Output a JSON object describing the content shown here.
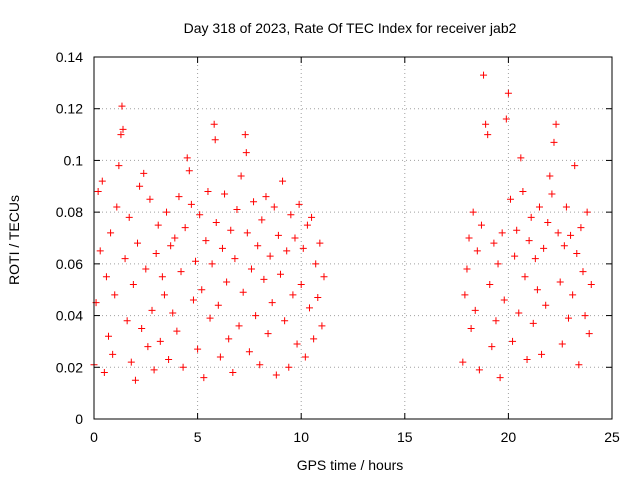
{
  "chart_data": {
    "type": "scatter",
    "title": "Day 318 of 2023, Rate Of TEC Index for receiver jab2",
    "xlabel": "GPS time / hours",
    "ylabel": "ROTI / TECUs",
    "xlim": [
      0,
      25
    ],
    "ylim": [
      0,
      0.14
    ],
    "xticks": [
      0,
      5,
      10,
      15,
      20,
      25
    ],
    "xtick_labels": [
      "0",
      "5",
      "10",
      "15",
      "20",
      "25"
    ],
    "yticks": [
      0,
      0.02,
      0.04,
      0.06,
      0.08,
      0.1,
      0.12,
      0.14
    ],
    "ytick_labels": [
      "0",
      "0.02",
      "0.04",
      "0.06",
      "0.08",
      "0.1",
      "0.12",
      "0.14"
    ],
    "grid": true,
    "marker": "+",
    "color": "#ff0000",
    "series": [
      {
        "name": "ROTI",
        "points": [
          [
            0.0,
            0.021
          ],
          [
            0.1,
            0.045
          ],
          [
            0.2,
            0.088
          ],
          [
            0.3,
            0.065
          ],
          [
            0.4,
            0.092
          ],
          [
            0.5,
            0.018
          ],
          [
            0.6,
            0.055
          ],
          [
            0.7,
            0.032
          ],
          [
            0.8,
            0.072
          ],
          [
            0.9,
            0.025
          ],
          [
            1.0,
            0.048
          ],
          [
            1.1,
            0.082
          ],
          [
            1.2,
            0.098
          ],
          [
            1.3,
            0.11
          ],
          [
            1.35,
            0.121
          ],
          [
            1.4,
            0.112
          ],
          [
            1.5,
            0.062
          ],
          [
            1.6,
            0.038
          ],
          [
            1.7,
            0.078
          ],
          [
            1.8,
            0.022
          ],
          [
            1.9,
            0.052
          ],
          [
            2.0,
            0.015
          ],
          [
            2.1,
            0.068
          ],
          [
            2.2,
            0.09
          ],
          [
            2.3,
            0.035
          ],
          [
            2.4,
            0.095
          ],
          [
            2.5,
            0.058
          ],
          [
            2.6,
            0.028
          ],
          [
            2.7,
            0.085
          ],
          [
            2.8,
            0.042
          ],
          [
            2.9,
            0.019
          ],
          [
            3.0,
            0.064
          ],
          [
            3.1,
            0.075
          ],
          [
            3.2,
            0.03
          ],
          [
            3.3,
            0.055
          ],
          [
            3.4,
            0.048
          ],
          [
            3.5,
            0.08
          ],
          [
            3.6,
            0.023
          ],
          [
            3.7,
            0.067
          ],
          [
            3.8,
            0.041
          ],
          [
            3.9,
            0.07
          ],
          [
            4.0,
            0.034
          ],
          [
            4.1,
            0.086
          ],
          [
            4.2,
            0.057
          ],
          [
            4.3,
            0.02
          ],
          [
            4.4,
            0.074
          ],
          [
            4.5,
            0.101
          ],
          [
            4.6,
            0.096
          ],
          [
            4.7,
            0.083
          ],
          [
            4.8,
            0.046
          ],
          [
            4.9,
            0.061
          ],
          [
            5.0,
            0.027
          ],
          [
            5.1,
            0.079
          ],
          [
            5.2,
            0.05
          ],
          [
            5.3,
            0.016
          ],
          [
            5.4,
            0.069
          ],
          [
            5.5,
            0.088
          ],
          [
            5.6,
            0.039
          ],
          [
            5.7,
            0.06
          ],
          [
            5.8,
            0.114
          ],
          [
            5.85,
            0.108
          ],
          [
            5.9,
            0.076
          ],
          [
            6.0,
            0.044
          ],
          [
            6.1,
            0.024
          ],
          [
            6.2,
            0.066
          ],
          [
            6.3,
            0.087
          ],
          [
            6.4,
            0.053
          ],
          [
            6.5,
            0.031
          ],
          [
            6.6,
            0.073
          ],
          [
            6.7,
            0.018
          ],
          [
            6.8,
            0.062
          ],
          [
            6.9,
            0.081
          ],
          [
            7.0,
            0.036
          ],
          [
            7.1,
            0.094
          ],
          [
            7.2,
            0.049
          ],
          [
            7.3,
            0.11
          ],
          [
            7.35,
            0.103
          ],
          [
            7.4,
            0.072
          ],
          [
            7.5,
            0.026
          ],
          [
            7.6,
            0.058
          ],
          [
            7.7,
            0.084
          ],
          [
            7.8,
            0.04
          ],
          [
            7.9,
            0.067
          ],
          [
            8.0,
            0.021
          ],
          [
            8.1,
            0.077
          ],
          [
            8.2,
            0.054
          ],
          [
            8.3,
            0.086
          ],
          [
            8.4,
            0.033
          ],
          [
            8.5,
            0.063
          ],
          [
            8.6,
            0.045
          ],
          [
            8.7,
            0.082
          ],
          [
            8.8,
            0.017
          ],
          [
            8.9,
            0.071
          ],
          [
            9.0,
            0.056
          ],
          [
            9.1,
            0.092
          ],
          [
            9.2,
            0.038
          ],
          [
            9.3,
            0.065
          ],
          [
            9.4,
            0.02
          ],
          [
            9.5,
            0.079
          ],
          [
            9.6,
            0.048
          ],
          [
            9.7,
            0.07
          ],
          [
            9.8,
            0.029
          ],
          [
            9.9,
            0.083
          ],
          [
            10.0,
            0.052
          ],
          [
            10.1,
            0.066
          ],
          [
            10.2,
            0.024
          ],
          [
            10.3,
            0.075
          ],
          [
            10.4,
            0.043
          ],
          [
            10.5,
            0.078
          ],
          [
            10.6,
            0.031
          ],
          [
            10.7,
            0.06
          ],
          [
            10.8,
            0.047
          ],
          [
            10.9,
            0.068
          ],
          [
            11.0,
            0.036
          ],
          [
            11.1,
            0.055
          ],
          [
            17.8,
            0.022
          ],
          [
            17.9,
            0.048
          ],
          [
            18.0,
            0.058
          ],
          [
            18.1,
            0.07
          ],
          [
            18.2,
            0.035
          ],
          [
            18.3,
            0.08
          ],
          [
            18.4,
            0.042
          ],
          [
            18.5,
            0.065
          ],
          [
            18.6,
            0.019
          ],
          [
            18.7,
            0.075
          ],
          [
            18.8,
            0.133
          ],
          [
            18.9,
            0.114
          ],
          [
            19.0,
            0.11
          ],
          [
            19.1,
            0.052
          ],
          [
            19.2,
            0.028
          ],
          [
            19.3,
            0.068
          ],
          [
            19.4,
            0.038
          ],
          [
            19.5,
            0.06
          ],
          [
            19.6,
            0.016
          ],
          [
            19.7,
            0.072
          ],
          [
            19.8,
            0.046
          ],
          [
            19.9,
            0.116
          ],
          [
            20.0,
            0.126
          ],
          [
            20.1,
            0.085
          ],
          [
            20.2,
            0.03
          ],
          [
            20.3,
            0.063
          ],
          [
            20.4,
            0.073
          ],
          [
            20.5,
            0.041
          ],
          [
            20.6,
            0.101
          ],
          [
            20.7,
            0.088
          ],
          [
            20.8,
            0.055
          ],
          [
            20.9,
            0.023
          ],
          [
            21.0,
            0.069
          ],
          [
            21.1,
            0.078
          ],
          [
            21.2,
            0.037
          ],
          [
            21.3,
            0.062
          ],
          [
            21.4,
            0.05
          ],
          [
            21.5,
            0.082
          ],
          [
            21.6,
            0.025
          ],
          [
            21.7,
            0.066
          ],
          [
            21.8,
            0.044
          ],
          [
            21.9,
            0.076
          ],
          [
            22.0,
            0.094
          ],
          [
            22.1,
            0.087
          ],
          [
            22.2,
            0.107
          ],
          [
            22.3,
            0.114
          ],
          [
            22.4,
            0.072
          ],
          [
            22.5,
            0.053
          ],
          [
            22.6,
            0.029
          ],
          [
            22.7,
            0.067
          ],
          [
            22.8,
            0.082
          ],
          [
            22.9,
            0.039
          ],
          [
            23.0,
            0.071
          ],
          [
            23.1,
            0.048
          ],
          [
            23.2,
            0.098
          ],
          [
            23.3,
            0.064
          ],
          [
            23.4,
            0.021
          ],
          [
            23.5,
            0.074
          ],
          [
            23.6,
            0.057
          ],
          [
            23.7,
            0.04
          ],
          [
            23.8,
            0.08
          ],
          [
            23.9,
            0.033
          ],
          [
            24.0,
            0.052
          ]
        ]
      }
    ]
  }
}
